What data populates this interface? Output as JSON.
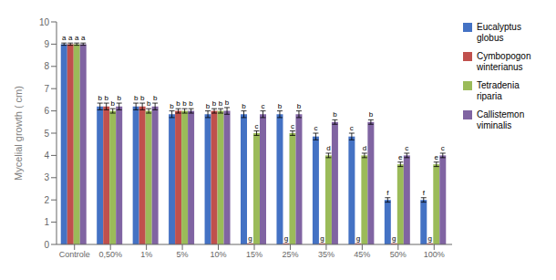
{
  "chart_data": {
    "type": "bar",
    "categories": [
      "Controle",
      "0,50%",
      "1%",
      "5%",
      "10%",
      "15%",
      "25%",
      "35%",
      "45%",
      "50%",
      "100%"
    ],
    "series": [
      {
        "name": "Eucalyptus\nglobus",
        "color": "#4472C4",
        "values": [
          9.0,
          6.2,
          6.2,
          5.85,
          5.85,
          5.85,
          5.85,
          4.85,
          4.85,
          2.0,
          2.0
        ],
        "errors": [
          0.05,
          0.15,
          0.15,
          0.15,
          0.15,
          0.15,
          0.15,
          0.15,
          0.15,
          0.1,
          0.1
        ],
        "letters": [
          "a",
          "b",
          "b",
          "b",
          "b",
          "b",
          "b",
          "c",
          "c",
          "f",
          "f"
        ]
      },
      {
        "name": "Cymbopogon\nwinterianus",
        "color": "#C0504D",
        "values": [
          9.0,
          6.2,
          6.2,
          6.0,
          6.0,
          0.05,
          0.05,
          0.05,
          0.05,
          0.05,
          0.05
        ],
        "errors": [
          0.05,
          0.15,
          0.15,
          0.1,
          0.1,
          0.0,
          0.0,
          0.0,
          0.0,
          0.0,
          0.0
        ],
        "letters": [
          "a",
          "b",
          "b",
          "b",
          "b",
          "g",
          "g",
          "g",
          "g",
          "g",
          "g"
        ]
      },
      {
        "name": "Tetradenia\nriparia",
        "color": "#9BBB59",
        "values": [
          9.0,
          6.0,
          6.0,
          6.0,
          6.0,
          5.0,
          5.0,
          4.0,
          4.0,
          3.6,
          3.6
        ],
        "errors": [
          0.05,
          0.1,
          0.1,
          0.1,
          0.1,
          0.1,
          0.1,
          0.1,
          0.1,
          0.1,
          0.1
        ],
        "letters": [
          "a",
          "b",
          "b",
          "b",
          "b",
          "c",
          "c",
          "d",
          "d",
          "e",
          "e"
        ]
      },
      {
        "name": "Callistemon\nviminalis",
        "color": "#8064A2",
        "values": [
          9.0,
          6.2,
          6.2,
          6.0,
          6.0,
          5.85,
          5.85,
          5.5,
          5.5,
          4.0,
          4.0
        ],
        "errors": [
          0.05,
          0.15,
          0.15,
          0.1,
          0.15,
          0.15,
          0.15,
          0.1,
          0.1,
          0.1,
          0.1
        ],
        "letters": [
          "a",
          "b",
          "b",
          "b",
          "b",
          "c",
          "b",
          "b",
          "b",
          "c",
          "c"
        ]
      }
    ],
    "ylabel": "Mycelial growth ( cm)",
    "ylim": [
      0,
      10
    ],
    "yticks": [
      0,
      1,
      2,
      3,
      4,
      5,
      6,
      7,
      8,
      9,
      10
    ],
    "grid": false,
    "legend": "right"
  }
}
